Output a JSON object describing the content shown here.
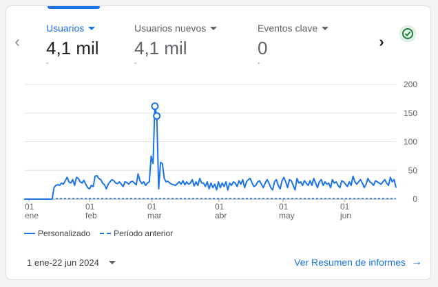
{
  "metrics": [
    {
      "label": "Usuarios",
      "value": "4,1 mil",
      "sub": "-"
    },
    {
      "label": "Usuarios nuevos",
      "value": "4,1 mil",
      "sub": "-"
    },
    {
      "label": "Eventos clave",
      "value": "0",
      "sub": "-"
    }
  ],
  "chart_data": {
    "type": "line",
    "x_tick_labels": [
      {
        "day": "01",
        "month": "ene"
      },
      {
        "day": "01",
        "month": "feb"
      },
      {
        "day": "01",
        "month": "mar"
      },
      {
        "day": "01",
        "month": "abr"
      },
      {
        "day": "01",
        "month": "may"
      },
      {
        "day": "01",
        "month": "jun"
      }
    ],
    "y_ticks": [
      "0",
      "50",
      "100",
      "150",
      "200"
    ],
    "ylim": [
      0,
      200
    ],
    "grid": true,
    "legend_placement": "bottom-left",
    "series": [
      {
        "name": "Personalizado",
        "style": "solid",
        "color": "#1a73e8",
        "values": [
          0,
          0,
          0,
          0,
          0,
          0,
          0,
          0,
          0,
          0,
          0,
          0,
          0,
          0,
          0,
          0,
          20,
          24,
          25,
          24,
          28,
          26,
          32,
          38,
          30,
          28,
          34,
          24,
          38,
          36,
          30,
          28,
          33,
          26,
          20,
          18,
          24,
          22,
          40,
          41,
          36,
          34,
          28,
          25,
          18,
          26,
          30,
          34,
          32,
          28,
          27,
          30,
          26,
          22,
          30,
          29,
          26,
          30,
          31,
          28,
          25,
          44,
          32,
          27,
          30,
          24,
          28,
          30,
          75,
          62,
          162,
          145,
          18,
          64,
          62,
          36,
          30,
          31,
          28,
          26,
          25,
          24,
          27,
          30,
          26,
          32,
          25,
          30,
          26,
          28,
          34,
          23,
          30,
          24,
          36,
          28,
          28,
          22,
          30,
          18,
          28,
          20,
          26,
          16,
          30,
          20,
          28,
          22,
          30,
          16,
          28,
          24,
          30,
          28,
          22,
          32,
          26,
          34,
          20,
          30,
          34,
          36,
          28,
          22,
          24,
          30,
          32,
          26,
          20,
          28,
          34,
          28,
          20,
          16,
          30,
          34,
          24,
          18,
          32,
          38,
          30,
          20,
          34,
          32,
          24,
          16,
          36,
          28,
          30,
          24,
          32,
          28,
          24,
          32,
          24,
          36,
          28,
          20,
          30,
          34,
          24,
          30,
          26,
          28,
          20,
          34,
          28,
          30,
          24,
          20,
          32,
          30,
          26,
          22,
          30,
          24,
          40,
          30,
          26,
          30,
          34,
          28,
          20,
          26,
          36,
          30,
          28,
          24,
          32,
          30,
          28,
          26,
          30,
          34,
          28,
          24,
          38,
          30,
          34,
          20
        ]
      },
      {
        "name": "Período anterior",
        "style": "dashed",
        "color": "#1a73e8",
        "values": [
          0,
          0
        ]
      }
    ],
    "highlight_points": [
      {
        "index": 70,
        "value": 162
      },
      {
        "index": 71,
        "value": 145
      }
    ]
  },
  "legend": [
    {
      "label": "Personalizado"
    },
    {
      "label": "Período anterior"
    }
  ],
  "date_range": "1 ene-22 jun 2024",
  "report_link": "Ver Resumen de informes",
  "colors": {
    "accent": "#1a73e8",
    "grid": "#e0e0e0",
    "text_secondary": "#5f6368"
  },
  "icons": {
    "check": "check-circle-icon",
    "prev": "chevron-left-icon",
    "next": "chevron-right-icon",
    "link_arrow": "arrow-right-icon"
  }
}
